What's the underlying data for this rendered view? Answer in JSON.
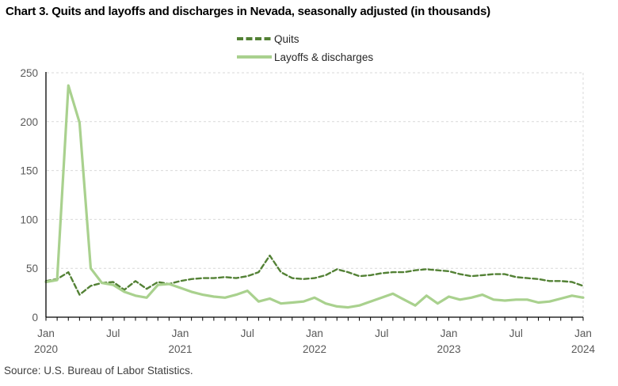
{
  "page": {
    "title": "Chart 3. Quits and layoffs and discharges in Nevada, seasonally adjusted (in thousands)",
    "source": "Source: U.S. Bureau of Labor Statistics."
  },
  "legend": {
    "items": [
      {
        "label": "Quits",
        "color": "#538135",
        "line_style": "dashed"
      },
      {
        "label": "Layoffs & discharges",
        "color": "#a9d18e",
        "line_style": "solid"
      }
    ]
  },
  "chart_data": {
    "type": "line",
    "title": "Chart 3. Quits and layoffs and discharges in Nevada, seasonally adjusted (in thousands)",
    "units": "thousands, seasonally adjusted",
    "x_start": "Jan 2020",
    "x_end": "Jan 2024",
    "x_frequency": "monthly",
    "ylim": [
      0,
      250
    ],
    "yticks": [
      0,
      50,
      100,
      150,
      200,
      250
    ],
    "grid": "horizontal dashed gray",
    "legend_position": "top center",
    "x_ticks": [
      {
        "i": 0,
        "month": "Jan",
        "year": "2020"
      },
      {
        "i": 6,
        "month": "Jul",
        "year": ""
      },
      {
        "i": 12,
        "month": "Jan",
        "year": "2021"
      },
      {
        "i": 18,
        "month": "Jul",
        "year": ""
      },
      {
        "i": 24,
        "month": "Jan",
        "year": "2022"
      },
      {
        "i": 30,
        "month": "Jul",
        "year": ""
      },
      {
        "i": 36,
        "month": "Jan",
        "year": "2023"
      },
      {
        "i": 42,
        "month": "Jul",
        "year": ""
      },
      {
        "i": 48,
        "month": "Jan",
        "year": "2024"
      }
    ],
    "series": [
      {
        "name": "Quits",
        "color": "#538135",
        "dash": true,
        "values": [
          37,
          39,
          46,
          23,
          32,
          35,
          36,
          28,
          37,
          29,
          36,
          34,
          37,
          39,
          40,
          40,
          41,
          40,
          42,
          46,
          63,
          46,
          40,
          39,
          40,
          43,
          49,
          46,
          42,
          43,
          45,
          46,
          46,
          48,
          49,
          48,
          47,
          44,
          42,
          43,
          44,
          44,
          41,
          40,
          39,
          37,
          37,
          36,
          32
        ]
      },
      {
        "name": "Layoffs & discharges",
        "color": "#a9d18e",
        "dash": false,
        "values": [
          36,
          38,
          237,
          199,
          50,
          35,
          33,
          26,
          22,
          20,
          33,
          34,
          30,
          26,
          23,
          21,
          20,
          23,
          27,
          16,
          19,
          14,
          15,
          16,
          20,
          14,
          11,
          10,
          12,
          16,
          20,
          24,
          18,
          12,
          22,
          14,
          21,
          18,
          20,
          23,
          18,
          17,
          18,
          18,
          15,
          16,
          19,
          22,
          20
        ]
      }
    ]
  },
  "colors": {
    "quits": "#538135",
    "layoffs": "#a9d18e",
    "gridline": "#d9d9d9",
    "axis": "#000000",
    "axis_label": "#595959",
    "title_text": "#000000",
    "source_text": "#3f3f3f"
  }
}
